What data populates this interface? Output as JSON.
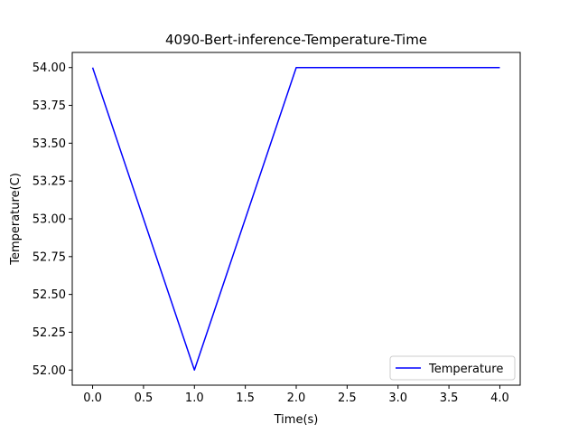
{
  "chart_data": {
    "type": "line",
    "title": "4090-Bert-inference-Temperature-Time",
    "xlabel": "Time(s)",
    "ylabel": "Temperature(C)",
    "x": [
      0,
      1,
      2,
      3,
      4
    ],
    "series": [
      {
        "name": "Temperature",
        "color": "#0000ff",
        "values": [
          54.0,
          52.0,
          54.0,
          54.0,
          54.0
        ]
      }
    ],
    "xlim": [
      -0.2,
      4.2
    ],
    "ylim": [
      51.9,
      54.1
    ],
    "x_ticks": [
      "0.0",
      "0.5",
      "1.0",
      "1.5",
      "2.0",
      "2.5",
      "3.0",
      "3.5",
      "4.0"
    ],
    "y_ticks": [
      "52.00",
      "52.25",
      "52.50",
      "52.75",
      "53.00",
      "53.25",
      "53.50",
      "53.75",
      "54.00"
    ],
    "grid": false,
    "legend_position": "lower-right"
  }
}
